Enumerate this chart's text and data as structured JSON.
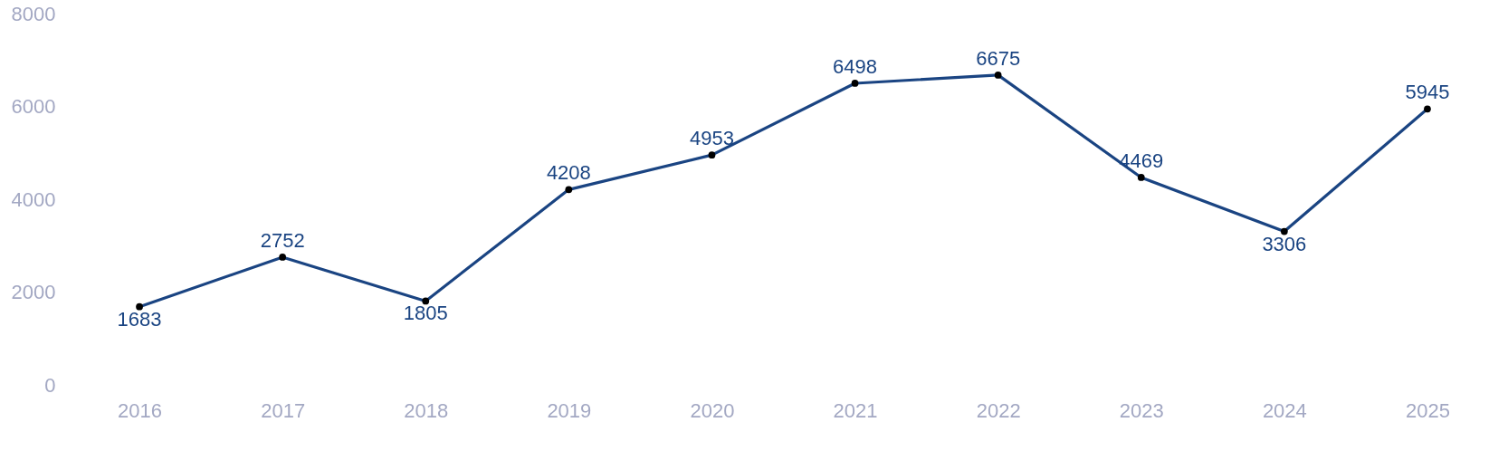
{
  "chart_data": {
    "type": "line",
    "categories": [
      "2016",
      "2017",
      "2018",
      "2019",
      "2020",
      "2021",
      "2022",
      "2023",
      "2024",
      "2025"
    ],
    "series": [
      {
        "color": "#1a4482",
        "values": [
          1683,
          2752,
          1805,
          4208,
          4953,
          6498,
          6675,
          4469,
          3306,
          5945
        ]
      }
    ],
    "ylim": [
      0,
      8000
    ],
    "yticks": [
      0,
      2000,
      4000,
      6000,
      8000
    ],
    "data_labels": true,
    "marker": "circle",
    "line_style": "solid",
    "grid": false
  }
}
